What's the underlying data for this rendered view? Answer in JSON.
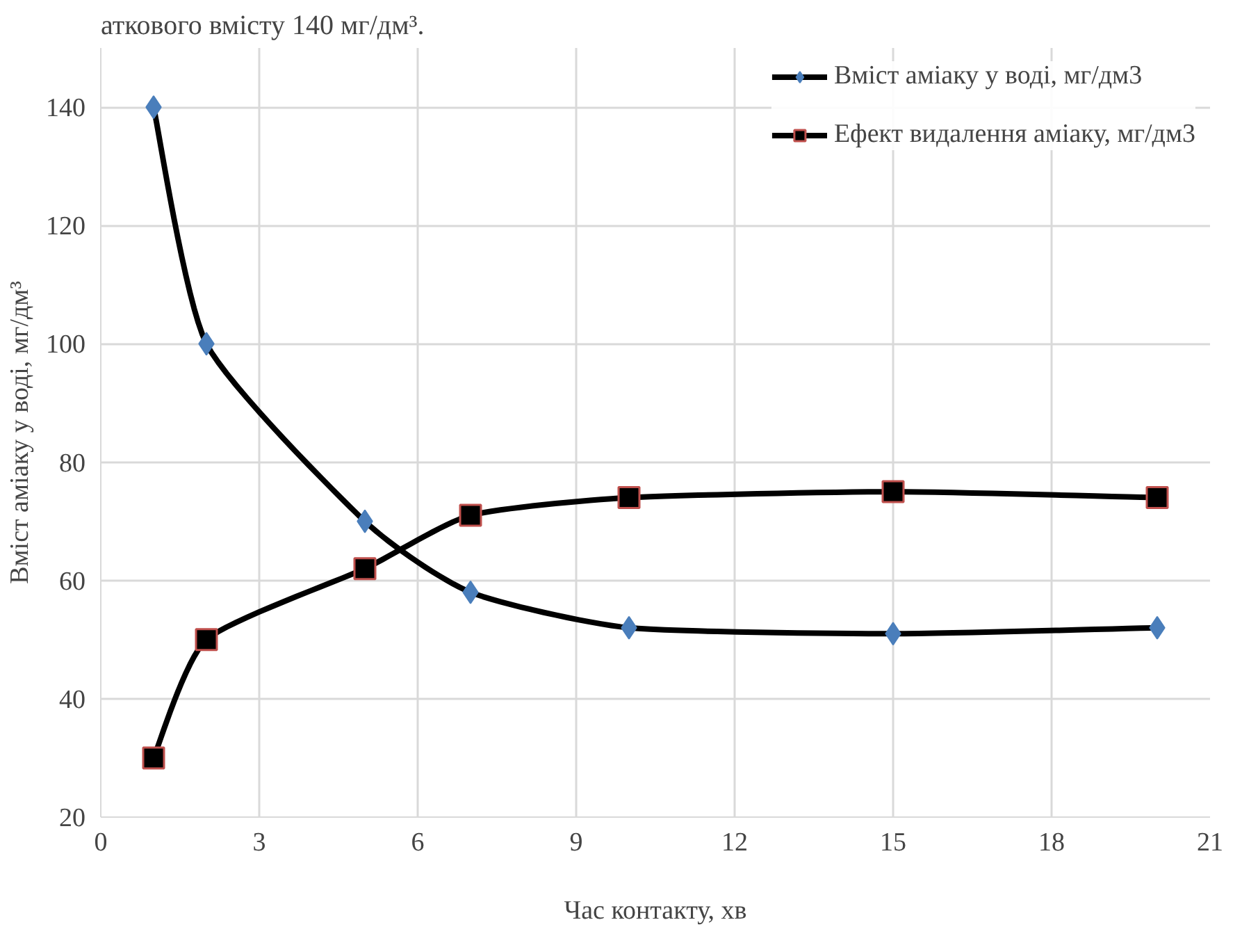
{
  "chart_data": {
    "type": "line",
    "xlabel": "Час контакту, хв",
    "ylabel": "Вміст аміаку у воді, мг/дм³",
    "annotations": [
      "аткового вмісту 140 мг/дм³."
    ],
    "x": [
      1,
      2,
      5,
      7,
      10,
      15,
      20
    ],
    "series": [
      {
        "name": "Вміст аміаку у воді, мг/дм3",
        "color": "#4a7ebb",
        "marker": "diamond",
        "values": [
          140,
          100,
          70,
          58,
          52,
          51,
          52
        ]
      },
      {
        "name": "Ефект видалення аміаку, мг/дм3",
        "color": "#000000",
        "marker": "square",
        "values": [
          30,
          50,
          62,
          71,
          74,
          75,
          74
        ]
      }
    ],
    "xlim": [
      0,
      21
    ],
    "xticks": [
      0,
      3,
      6,
      9,
      12,
      15,
      18,
      21
    ],
    "ylim": [
      20,
      150
    ],
    "yticks": [
      20,
      40,
      60,
      80,
      100,
      120,
      140
    ],
    "grid": true,
    "legend": "top right",
    "line_style": "solid"
  }
}
